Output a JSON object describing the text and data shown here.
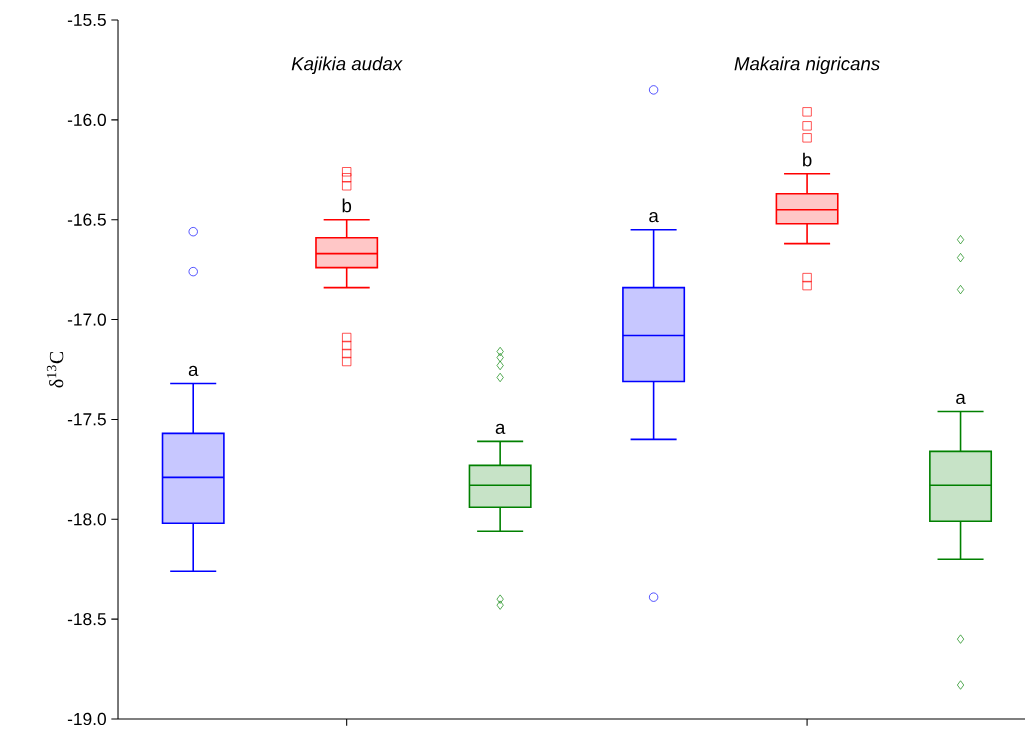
{
  "chart_data": {
    "type": "box",
    "ylabel": "δ$^{13}$C",
    "categories": [
      null,
      null,
      null,
      null,
      null,
      null
    ],
    "ylim": [
      -19.0,
      -15.5
    ],
    "yticks": [
      {
        "value": -19.0,
        "label": "-19.0"
      },
      {
        "value": -18.5,
        "label": "-18.5"
      },
      {
        "value": -18.0,
        "label": "-18.0"
      },
      {
        "value": -17.5,
        "label": "-17.5"
      },
      {
        "value": -17.0,
        "label": "-17.0"
      },
      {
        "value": -16.5,
        "label": "-16.5"
      },
      {
        "value": -16.0,
        "label": "-16.0"
      },
      {
        "value": -15.5,
        "label": "-15.5"
      }
    ],
    "annotations": [
      "Kajikia audax",
      "Makaira nigricans",
      "a",
      "b",
      "a",
      "a",
      "b",
      "a"
    ],
    "series": [
      {
        "color": "#0000ff",
        "marker": "circle",
        "boxes": [
          {
            "low": -18.26,
            "q1": -18.02,
            "median": -17.79,
            "q3": -17.57,
            "high": -17.32,
            "outliers": [
              -16.56,
              -16.76
            ]
          },
          null,
          null,
          {
            "low": -17.6,
            "q1": -17.31,
            "median": -17.08,
            "q3": -16.84,
            "high": -16.55,
            "outliers": [
              -15.85,
              -18.39
            ]
          },
          null,
          null
        ]
      },
      {
        "color": "#ff0000",
        "marker": "square",
        "boxes": [
          null,
          {
            "low": -16.84,
            "q1": -16.74,
            "median": -16.67,
            "q3": -16.59,
            "high": -16.5,
            "outliers": [
              -16.26,
              -16.29,
              -16.33,
              -17.09,
              -17.13,
              -17.17,
              -17.21
            ]
          },
          null,
          null,
          {
            "low": -16.62,
            "q1": -16.52,
            "median": -16.45,
            "q3": -16.37,
            "high": -16.27,
            "outliers": [
              -15.96,
              -16.03,
              -16.09,
              -16.79,
              -16.83
            ]
          },
          null
        ]
      },
      {
        "color": "#008000",
        "marker": "diamond",
        "boxes": [
          null,
          null,
          {
            "low": -18.06,
            "q1": -17.94,
            "median": -17.83,
            "q3": -17.73,
            "high": -17.61,
            "outliers": [
              -17.16,
              -17.19,
              -17.23,
              -17.29,
              -18.4,
              -18.43
            ]
          },
          null,
          null,
          {
            "low": -18.2,
            "q1": -18.01,
            "median": -17.83,
            "q3": -17.66,
            "high": -17.46,
            "outliers": [
              -16.6,
              -16.69,
              -16.85,
              -18.6,
              -18.83
            ]
          }
        ]
      }
    ]
  }
}
